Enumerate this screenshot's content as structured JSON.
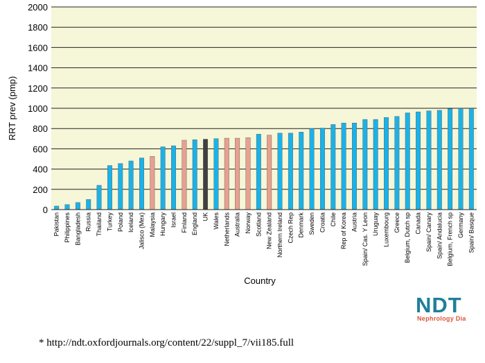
{
  "chart_data": {
    "type": "bar",
    "xlabel": "Country",
    "ylabel": "RRT prev (pmp)",
    "ylim": [
      0,
      2000
    ],
    "yticks": [
      0,
      200,
      400,
      600,
      800,
      1000,
      1200,
      1400,
      1600,
      1800,
      2000
    ],
    "grid": true,
    "colors": {
      "default": "#1ab2e8",
      "highlight": "#e8a090",
      "uk": "#404040",
      "plot_bg": "#f6f6d8"
    },
    "categories": [
      "Pakistan",
      "Philippines",
      "Bangladesh",
      "Russia",
      "Thailand",
      "Turkey",
      "Poland",
      "Iceland",
      "Jalisco (Mex)",
      "Malaysia",
      "Hungary",
      "Israel",
      "Finland",
      "England",
      "UK",
      "Wales",
      "Netherlands",
      "Australia",
      "Norway",
      "Scotland",
      "New Zealand",
      "Northern Ireland",
      "Czech Rep",
      "Denmark",
      "Sweden",
      "Croatia",
      "Chile",
      "Rep of Korea",
      "Austria",
      "Spain/ Cas. Y Leon",
      "Uruguay",
      "Luxembourg",
      "Greece",
      "Belgium, Dutch sp",
      "Canada",
      "Spain/ Canary",
      "Spain/ Andalucia",
      "Belgium, French sp",
      "Germany",
      "Spain/ Basque"
    ],
    "values": [
      35,
      50,
      70,
      100,
      240,
      435,
      455,
      480,
      510,
      525,
      620,
      630,
      685,
      690,
      695,
      700,
      705,
      705,
      710,
      745,
      735,
      755,
      755,
      765,
      800,
      805,
      840,
      855,
      855,
      890,
      890,
      910,
      920,
      955,
      965,
      975,
      980,
      995,
      998,
      998
    ],
    "bar_style": [
      "default",
      "default",
      "default",
      "default",
      "default",
      "default",
      "default",
      "default",
      "default",
      "highlight",
      "default",
      "default",
      "highlight",
      "default",
      "uk",
      "default",
      "highlight",
      "highlight",
      "highlight",
      "default",
      "highlight",
      "default",
      "default",
      "default",
      "default",
      "default",
      "default",
      "default",
      "default",
      "default",
      "default",
      "default",
      "default",
      "default",
      "default",
      "default",
      "default",
      "default",
      "default",
      "default"
    ]
  },
  "logo": {
    "text": "NDT",
    "subtitle": "Nephrology Dia"
  },
  "footnote": "* http://ndt.oxfordjournals.org/content/22/suppl_7/vii185.full"
}
